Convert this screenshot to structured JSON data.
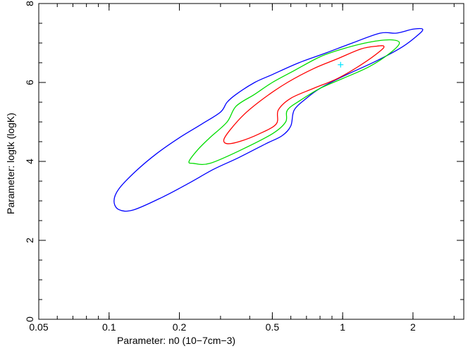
{
  "chart_data": {
    "type": "contour",
    "xlabel": "Parameter: n0 (10−7cm−3)",
    "ylabel": "Parameter: logtk (logK)",
    "xscale": "log",
    "xlim": [
      0.05,
      3.3
    ],
    "ylim": [
      0,
      8
    ],
    "x_ticks": [
      0.05,
      0.1,
      0.2,
      0.5,
      1,
      2
    ],
    "x_tick_labels": [
      "0.05",
      "0.1",
      "0.2",
      "0.5",
      "1",
      "2"
    ],
    "y_ticks": [
      0,
      2,
      4,
      6,
      8
    ],
    "y_tick_labels": [
      "0",
      "2",
      "4",
      "6",
      "8"
    ],
    "best_fit": {
      "x": 0.98,
      "y": 6.45,
      "color": "#00e5ff"
    },
    "series": [
      {
        "level": "outer",
        "color": "#0000ff",
        "points": [
          [
            0.11,
            2.78
          ],
          [
            0.127,
            2.77
          ],
          [
            0.17,
            3.1
          ],
          [
            0.22,
            3.45
          ],
          [
            0.28,
            3.8
          ],
          [
            0.36,
            4.1
          ],
          [
            0.47,
            4.45
          ],
          [
            0.55,
            4.65
          ],
          [
            0.6,
            4.9
          ],
          [
            0.62,
            5.3
          ],
          [
            0.7,
            5.6
          ],
          [
            0.8,
            5.85
          ],
          [
            1.0,
            6.15
          ],
          [
            1.4,
            6.55
          ],
          [
            1.8,
            6.9
          ],
          [
            2.1,
            7.2
          ],
          [
            2.2,
            7.35
          ],
          [
            2.0,
            7.35
          ],
          [
            1.7,
            7.25
          ],
          [
            1.45,
            7.25
          ],
          [
            1.1,
            7.0
          ],
          [
            0.85,
            6.75
          ],
          [
            0.65,
            6.5
          ],
          [
            0.5,
            6.2
          ],
          [
            0.42,
            6.0
          ],
          [
            0.35,
            5.7
          ],
          [
            0.32,
            5.5
          ],
          [
            0.3,
            5.25
          ],
          [
            0.25,
            4.95
          ],
          [
            0.2,
            4.6
          ],
          [
            0.16,
            4.2
          ],
          [
            0.13,
            3.75
          ],
          [
            0.11,
            3.3
          ],
          [
            0.105,
            3.0
          ],
          [
            0.11,
            2.78
          ]
        ]
      },
      {
        "level": "middle",
        "color": "#00dd00",
        "points": [
          [
            0.23,
            3.95
          ],
          [
            0.27,
            3.95
          ],
          [
            0.37,
            4.3
          ],
          [
            0.5,
            4.7
          ],
          [
            0.57,
            5.0
          ],
          [
            0.58,
            5.3
          ],
          [
            0.66,
            5.55
          ],
          [
            0.8,
            5.85
          ],
          [
            1.0,
            6.1
          ],
          [
            1.3,
            6.4
          ],
          [
            1.6,
            6.75
          ],
          [
            1.75,
            7.0
          ],
          [
            1.6,
            7.08
          ],
          [
            1.3,
            7.02
          ],
          [
            1.0,
            6.85
          ],
          [
            0.8,
            6.65
          ],
          [
            0.62,
            6.3
          ],
          [
            0.5,
            6.0
          ],
          [
            0.42,
            5.7
          ],
          [
            0.35,
            5.4
          ],
          [
            0.32,
            5.0
          ],
          [
            0.27,
            4.6
          ],
          [
            0.24,
            4.3
          ],
          [
            0.22,
            4.0
          ],
          [
            0.23,
            3.95
          ]
        ]
      },
      {
        "level": "inner",
        "color": "#ff0000",
        "points": [
          [
            0.32,
            4.45
          ],
          [
            0.36,
            4.5
          ],
          [
            0.44,
            4.7
          ],
          [
            0.52,
            4.95
          ],
          [
            0.53,
            5.3
          ],
          [
            0.6,
            5.6
          ],
          [
            0.75,
            5.85
          ],
          [
            0.95,
            6.1
          ],
          [
            1.2,
            6.45
          ],
          [
            1.45,
            6.8
          ],
          [
            1.5,
            6.92
          ],
          [
            1.4,
            6.92
          ],
          [
            1.2,
            6.85
          ],
          [
            0.95,
            6.6
          ],
          [
            0.75,
            6.35
          ],
          [
            0.58,
            6.0
          ],
          [
            0.46,
            5.6
          ],
          [
            0.38,
            5.2
          ],
          [
            0.33,
            4.8
          ],
          [
            0.31,
            4.55
          ],
          [
            0.32,
            4.45
          ]
        ]
      }
    ]
  }
}
